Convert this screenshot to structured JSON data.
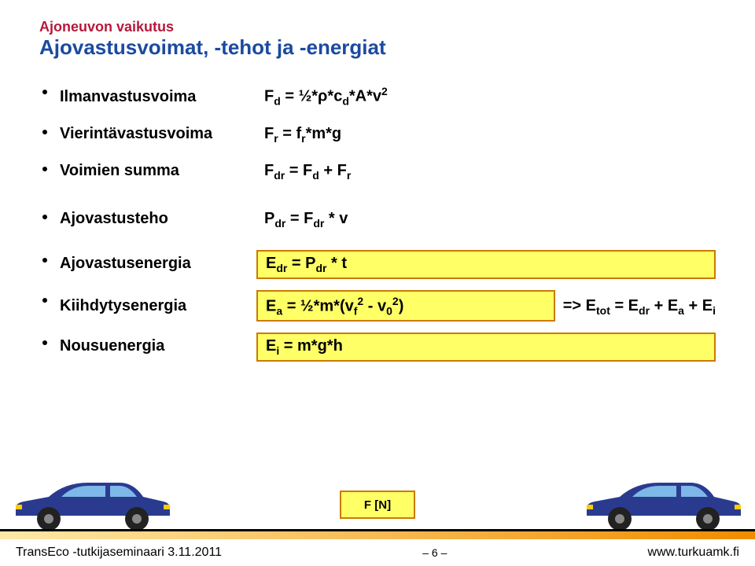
{
  "colors": {
    "pretitle": "#b5193a",
    "title": "#1b4aa0",
    "text": "#000000",
    "box_bg": "#ffff66",
    "box_border": "#cc7a00",
    "grad_left": "#ffe9a8",
    "grad_right": "#f08c00",
    "car_body": "#2a3b8f",
    "car_window": "#7db8e8",
    "car_wheel": "#222222",
    "car_hub": "#888888",
    "car_light": "#ffcc00"
  },
  "header": {
    "pretitle": "Ajoneuvon vaikutus",
    "title": "Ajovastusvoimat, -tehot ja -energiat"
  },
  "group1": [
    {
      "label": "Ilmanvastusvoima",
      "formula_html": "F<sub>d</sub> = ½*ρ*c<sub>d</sub>*A*v<sup>2</sup>"
    },
    {
      "label": "Vierintävastusvoima",
      "formula_html": "F<sub>r</sub> = f<sub>r</sub>*m*g"
    },
    {
      "label": "Voimien summa",
      "formula_html": "F<sub>dr</sub> = F<sub>d</sub> + F<sub>r</sub>"
    }
  ],
  "group2": [
    {
      "label": "Ajovastusteho",
      "formula_html": "P<sub>dr</sub> = F<sub>dr</sub> * v"
    }
  ],
  "group3": [
    {
      "label": "Ajovastusenergia",
      "formula_html": "E<sub>dr</sub> = P<sub>dr</sub> * t",
      "boxed": true
    },
    {
      "label": "Kiihdytysenergia",
      "formula_html": "E<sub>a</sub> = ½*m*(v<sub>f</sub><sup>2</sup> - v<sub>0</sub><sup>2</sup>)",
      "boxed": true,
      "implies_html": "=>  E<sub>tot</sub> = E<sub>dr</sub> + E<sub>a</sub> + E<sub>i</sub>"
    },
    {
      "label": "Nousuenergia",
      "formula_html": "E<sub>i</sub> = m*g*h",
      "boxed": true
    }
  ],
  "fn_box": "F [N]",
  "footer": {
    "left": "TransEco -tutkijaseminaari 3.11.2011",
    "page_prefix": "– ",
    "page_num": "6",
    "page_suffix": " –",
    "url": "www.turkuamk.fi"
  }
}
